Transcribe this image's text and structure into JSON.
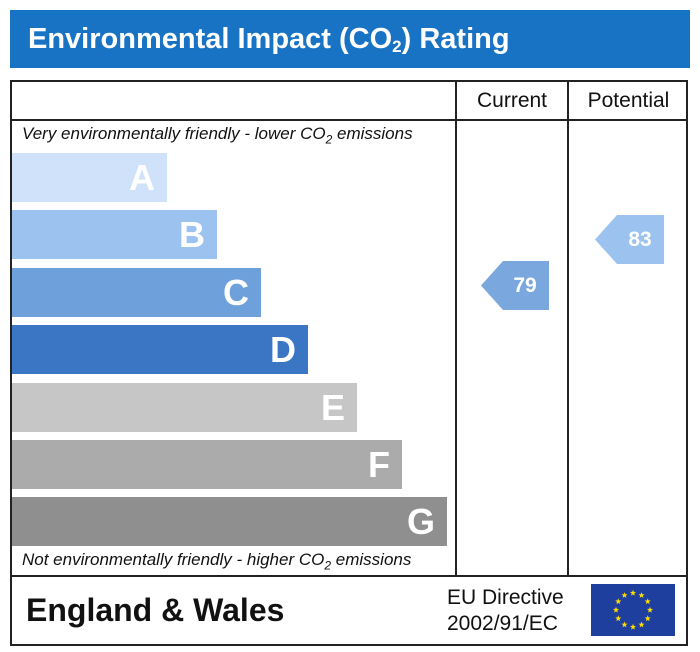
{
  "title": {
    "main": "Environmental Impact (CO",
    "sub": "2",
    "after": ") Rating"
  },
  "columns": {
    "current": "Current",
    "potential": "Potential"
  },
  "captions": {
    "top_before": "Very environmentally friendly - lower CO",
    "top_sub": "2",
    "top_after": " emissions",
    "bottom_before": "Not environmentally friendly - higher CO",
    "bottom_sub": "2",
    "bottom_after": " emissions"
  },
  "chart_data": {
    "type": "bar",
    "categories": [
      "A",
      "B",
      "C",
      "D",
      "E",
      "F",
      "G"
    ],
    "band_colors": [
      "#cfe2f9",
      "#9cc3ef",
      "#6ea1db",
      "#3b76c4",
      "#c6c6c6",
      "#ababab",
      "#8f8f8f"
    ],
    "current": {
      "value": 79,
      "band": "C",
      "color": "#7aa7de"
    },
    "potential": {
      "value": 83,
      "band": "B",
      "color": "#9cc3ef"
    }
  },
  "footer": {
    "region": "England & Wales",
    "directive_line1": "EU Directive",
    "directive_line2": "2002/91/EC"
  },
  "colors": {
    "title_bar": "#1873c4",
    "flag_blue": "#1f3f9f",
    "flag_star": "#ffdd00"
  },
  "icons": {
    "flag": "eu-flag-icon"
  }
}
